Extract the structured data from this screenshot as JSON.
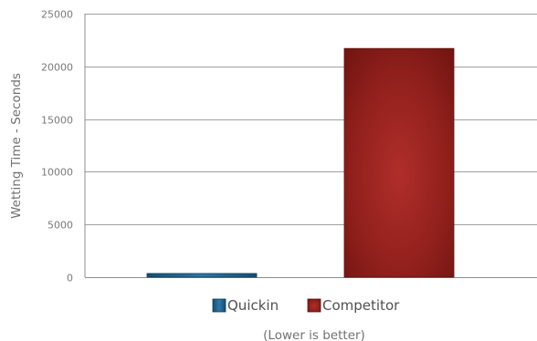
{
  "chart_data": {
    "type": "bar",
    "categories": [
      "Quickin",
      "Competitor"
    ],
    "values": [
      350,
      21700
    ],
    "colors": [
      "#1d5f8a",
      "#8a1c19"
    ],
    "legend": [
      "Quickin",
      "Competitor"
    ],
    "legend_placement": "bottom",
    "ylabel": "Wetting Time - Seconds",
    "ylim": [
      0,
      25000
    ],
    "yticks": [
      "0",
      "5000",
      "10000",
      "15000",
      "20000",
      "25000"
    ],
    "note": "(Lower is better)",
    "grid": true
  }
}
